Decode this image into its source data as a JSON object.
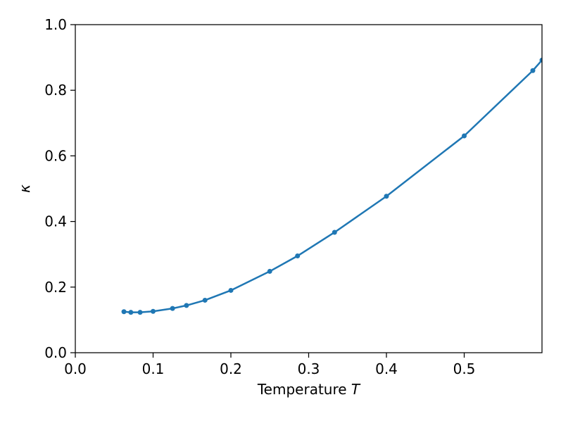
{
  "chart_data": {
    "type": "line",
    "title": "",
    "xlabel": "Temperature ",
    "xlabel_italic": "T",
    "ylabel": "κ",
    "xlim": [
      0.0,
      0.6
    ],
    "ylim": [
      0.0,
      1.0
    ],
    "xticks": [
      0.0,
      0.1,
      0.2,
      0.3,
      0.4,
      0.5
    ],
    "xtick_labels": [
      "0.0",
      "0.1",
      "0.2",
      "0.3",
      "0.4",
      "0.5"
    ],
    "yticks": [
      0.0,
      0.2,
      0.4,
      0.6,
      0.8,
      1.0
    ],
    "ytick_labels": [
      "0.0",
      "0.2",
      "0.4",
      "0.6",
      "0.8",
      "1.0"
    ],
    "grid": false,
    "series": [
      {
        "color": "#1f77b4",
        "marker": "circle",
        "x": [
          0.0625,
          0.0714,
          0.0833,
          0.1,
          0.125,
          0.1429,
          0.1667,
          0.2,
          0.25,
          0.2857,
          0.3333,
          0.4,
          0.5,
          0.5882,
          0.6
        ],
        "y": [
          0.125,
          0.123,
          0.123,
          0.126,
          0.135,
          0.144,
          0.16,
          0.19,
          0.248,
          0.295,
          0.367,
          0.477,
          0.661,
          0.86,
          0.892
        ]
      }
    ]
  }
}
